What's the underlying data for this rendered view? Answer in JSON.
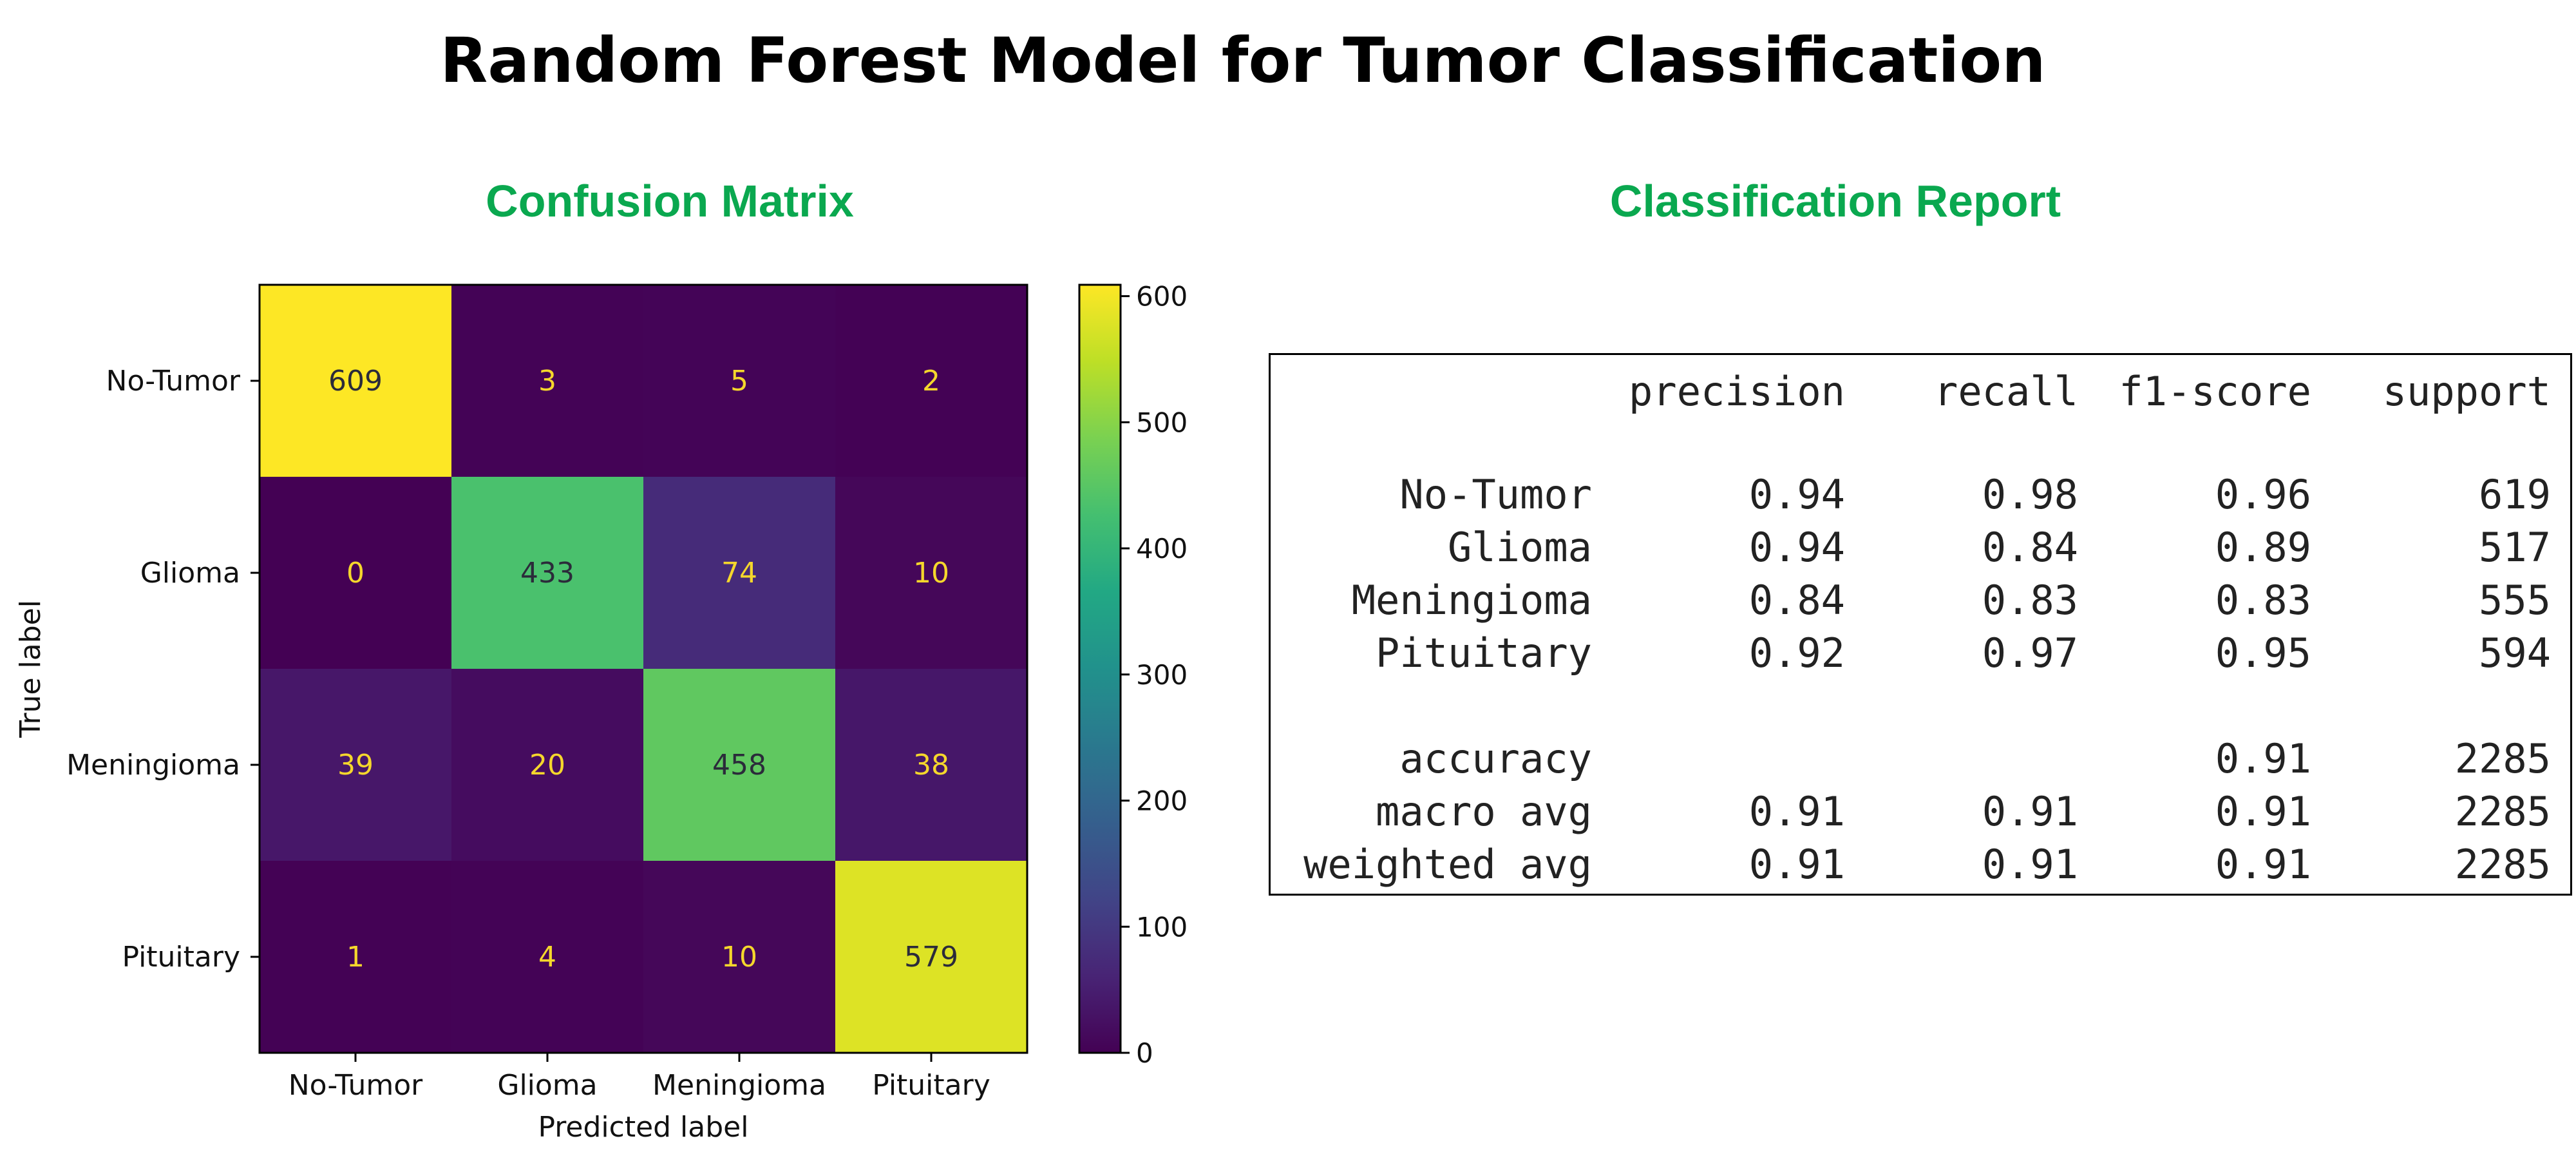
{
  "title": "Random Forest Model for Tumor Classification",
  "accent_color": "#0aa84f",
  "confusion_matrix_title": "Confusion Matrix",
  "classification_report_title": "Classification Report",
  "chart_data": {
    "type": "heatmap",
    "title": "",
    "xlabel": "Predicted label",
    "ylabel": "True label",
    "x_categories": [
      "No-Tumor",
      "Glioma",
      "Meningioma",
      "Pituitary"
    ],
    "y_categories": [
      "No-Tumor",
      "Glioma",
      "Meningioma",
      "Pituitary"
    ],
    "values": [
      [
        609,
        3,
        5,
        2
      ],
      [
        0,
        433,
        74,
        10
      ],
      [
        39,
        20,
        458,
        38
      ],
      [
        1,
        4,
        10,
        579
      ]
    ],
    "colormap": "viridis",
    "colorbar": {
      "min": 0,
      "max": 609,
      "ticks": [
        "0",
        "100",
        "200",
        "300",
        "400",
        "500",
        "600"
      ]
    },
    "grid": false,
    "legend": "none"
  },
  "report": {
    "headers": [
      "precision",
      "recall",
      "f1-score",
      "support"
    ],
    "rows": [
      {
        "label": "No-Tumor",
        "precision": "0.94",
        "recall": "0.98",
        "f1": "0.96",
        "support": "619"
      },
      {
        "label": "Glioma",
        "precision": "0.94",
        "recall": "0.84",
        "f1": "0.89",
        "support": "517"
      },
      {
        "label": "Meningioma",
        "precision": "0.84",
        "recall": "0.83",
        "f1": "0.83",
        "support": "555"
      },
      {
        "label": "Pituitary",
        "precision": "0.92",
        "recall": "0.97",
        "f1": "0.95",
        "support": "594"
      }
    ],
    "summary": [
      {
        "label": "accuracy",
        "precision": "",
        "recall": "",
        "f1": "0.91",
        "support": "2285"
      },
      {
        "label": "macro avg",
        "precision": "0.91",
        "recall": "0.91",
        "f1": "0.91",
        "support": "2285"
      },
      {
        "label": "weighted avg",
        "precision": "0.91",
        "recall": "0.91",
        "f1": "0.91",
        "support": "2285"
      }
    ]
  }
}
